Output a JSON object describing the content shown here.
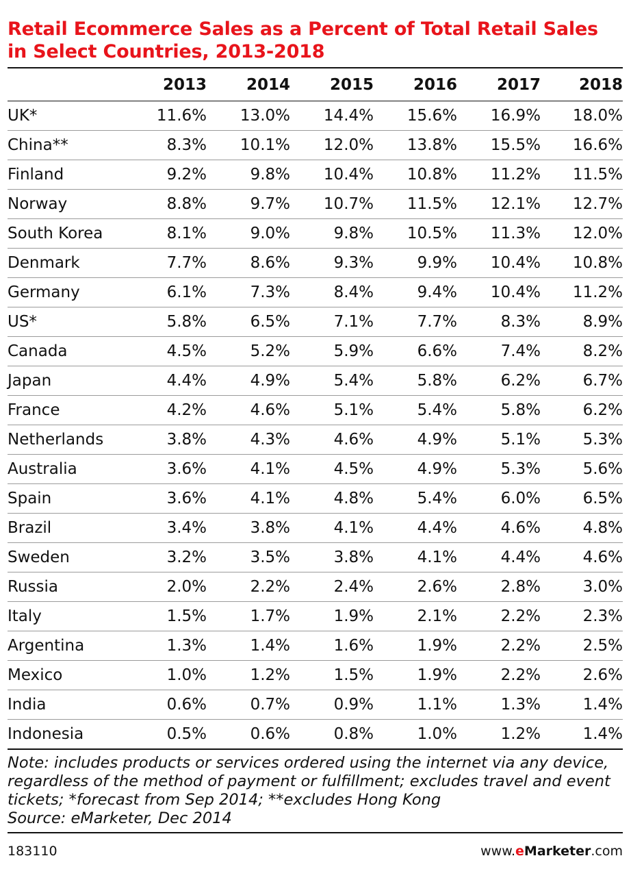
{
  "chart_data": {
    "type": "table",
    "title": "Retail Ecommerce Sales as a Percent of Total Retail Sales in Select Countries, 2013-2018",
    "columns": [
      "2013",
      "2014",
      "2015",
      "2016",
      "2017",
      "2018"
    ],
    "rows": [
      {
        "country": "UK*",
        "values": [
          "11.6%",
          "13.0%",
          "14.4%",
          "15.6%",
          "16.9%",
          "18.0%"
        ]
      },
      {
        "country": "China**",
        "values": [
          "8.3%",
          "10.1%",
          "12.0%",
          "13.8%",
          "15.5%",
          "16.6%"
        ]
      },
      {
        "country": "Finland",
        "values": [
          "9.2%",
          "9.8%",
          "10.4%",
          "10.8%",
          "11.2%",
          "11.5%"
        ]
      },
      {
        "country": "Norway",
        "values": [
          "8.8%",
          "9.7%",
          "10.7%",
          "11.5%",
          "12.1%",
          "12.7%"
        ]
      },
      {
        "country": "South Korea",
        "values": [
          "8.1%",
          "9.0%",
          "9.8%",
          "10.5%",
          "11.3%",
          "12.0%"
        ]
      },
      {
        "country": "Denmark",
        "values": [
          "7.7%",
          "8.6%",
          "9.3%",
          "9.9%",
          "10.4%",
          "10.8%"
        ]
      },
      {
        "country": "Germany",
        "values": [
          "6.1%",
          "7.3%",
          "8.4%",
          "9.4%",
          "10.4%",
          "11.2%"
        ]
      },
      {
        "country": "US*",
        "values": [
          "5.8%",
          "6.5%",
          "7.1%",
          "7.7%",
          "8.3%",
          "8.9%"
        ]
      },
      {
        "country": "Canada",
        "values": [
          "4.5%",
          "5.2%",
          "5.9%",
          "6.6%",
          "7.4%",
          "8.2%"
        ]
      },
      {
        "country": "Japan",
        "values": [
          "4.4%",
          "4.9%",
          "5.4%",
          "5.8%",
          "6.2%",
          "6.7%"
        ]
      },
      {
        "country": "France",
        "values": [
          "4.2%",
          "4.6%",
          "5.1%",
          "5.4%",
          "5.8%",
          "6.2%"
        ]
      },
      {
        "country": "Netherlands",
        "values": [
          "3.8%",
          "4.3%",
          "4.6%",
          "4.9%",
          "5.1%",
          "5.3%"
        ]
      },
      {
        "country": "Australia",
        "values": [
          "3.6%",
          "4.1%",
          "4.5%",
          "4.9%",
          "5.3%",
          "5.6%"
        ]
      },
      {
        "country": "Spain",
        "values": [
          "3.6%",
          "4.1%",
          "4.8%",
          "5.4%",
          "6.0%",
          "6.5%"
        ]
      },
      {
        "country": "Brazil",
        "values": [
          "3.4%",
          "3.8%",
          "4.1%",
          "4.4%",
          "4.6%",
          "4.8%"
        ]
      },
      {
        "country": "Sweden",
        "values": [
          "3.2%",
          "3.5%",
          "3.8%",
          "4.1%",
          "4.4%",
          "4.6%"
        ]
      },
      {
        "country": "Russia",
        "values": [
          "2.0%",
          "2.2%",
          "2.4%",
          "2.6%",
          "2.8%",
          "3.0%"
        ]
      },
      {
        "country": "Italy",
        "values": [
          "1.5%",
          "1.7%",
          "1.9%",
          "2.1%",
          "2.2%",
          "2.3%"
        ]
      },
      {
        "country": "Argentina",
        "values": [
          "1.3%",
          "1.4%",
          "1.6%",
          "1.9%",
          "2.2%",
          "2.5%"
        ]
      },
      {
        "country": "Mexico",
        "values": [
          "1.0%",
          "1.2%",
          "1.5%",
          "1.9%",
          "2.2%",
          "2.6%"
        ]
      },
      {
        "country": "India",
        "values": [
          "0.6%",
          "0.7%",
          "0.9%",
          "1.1%",
          "1.3%",
          "1.4%"
        ]
      },
      {
        "country": "Indonesia",
        "values": [
          "0.5%",
          "0.6%",
          "0.8%",
          "1.0%",
          "1.2%",
          "1.4%"
        ]
      }
    ],
    "note": "Note: includes products or services ordered using the internet via any device, regardless of the method of payment or fulfillment; excludes travel and event tickets; *forecast from Sep 2014; **excludes Hong Kong",
    "source": "Source: eMarketer, Dec 2014"
  },
  "footer": {
    "id": "183110",
    "site_prefix": "www.",
    "site_e": "e",
    "site_brand": "Marketer",
    "site_suffix": ".com"
  },
  "colors": {
    "accent": "#e8141b",
    "text": "#111111",
    "rule": "#9a9a9a"
  }
}
